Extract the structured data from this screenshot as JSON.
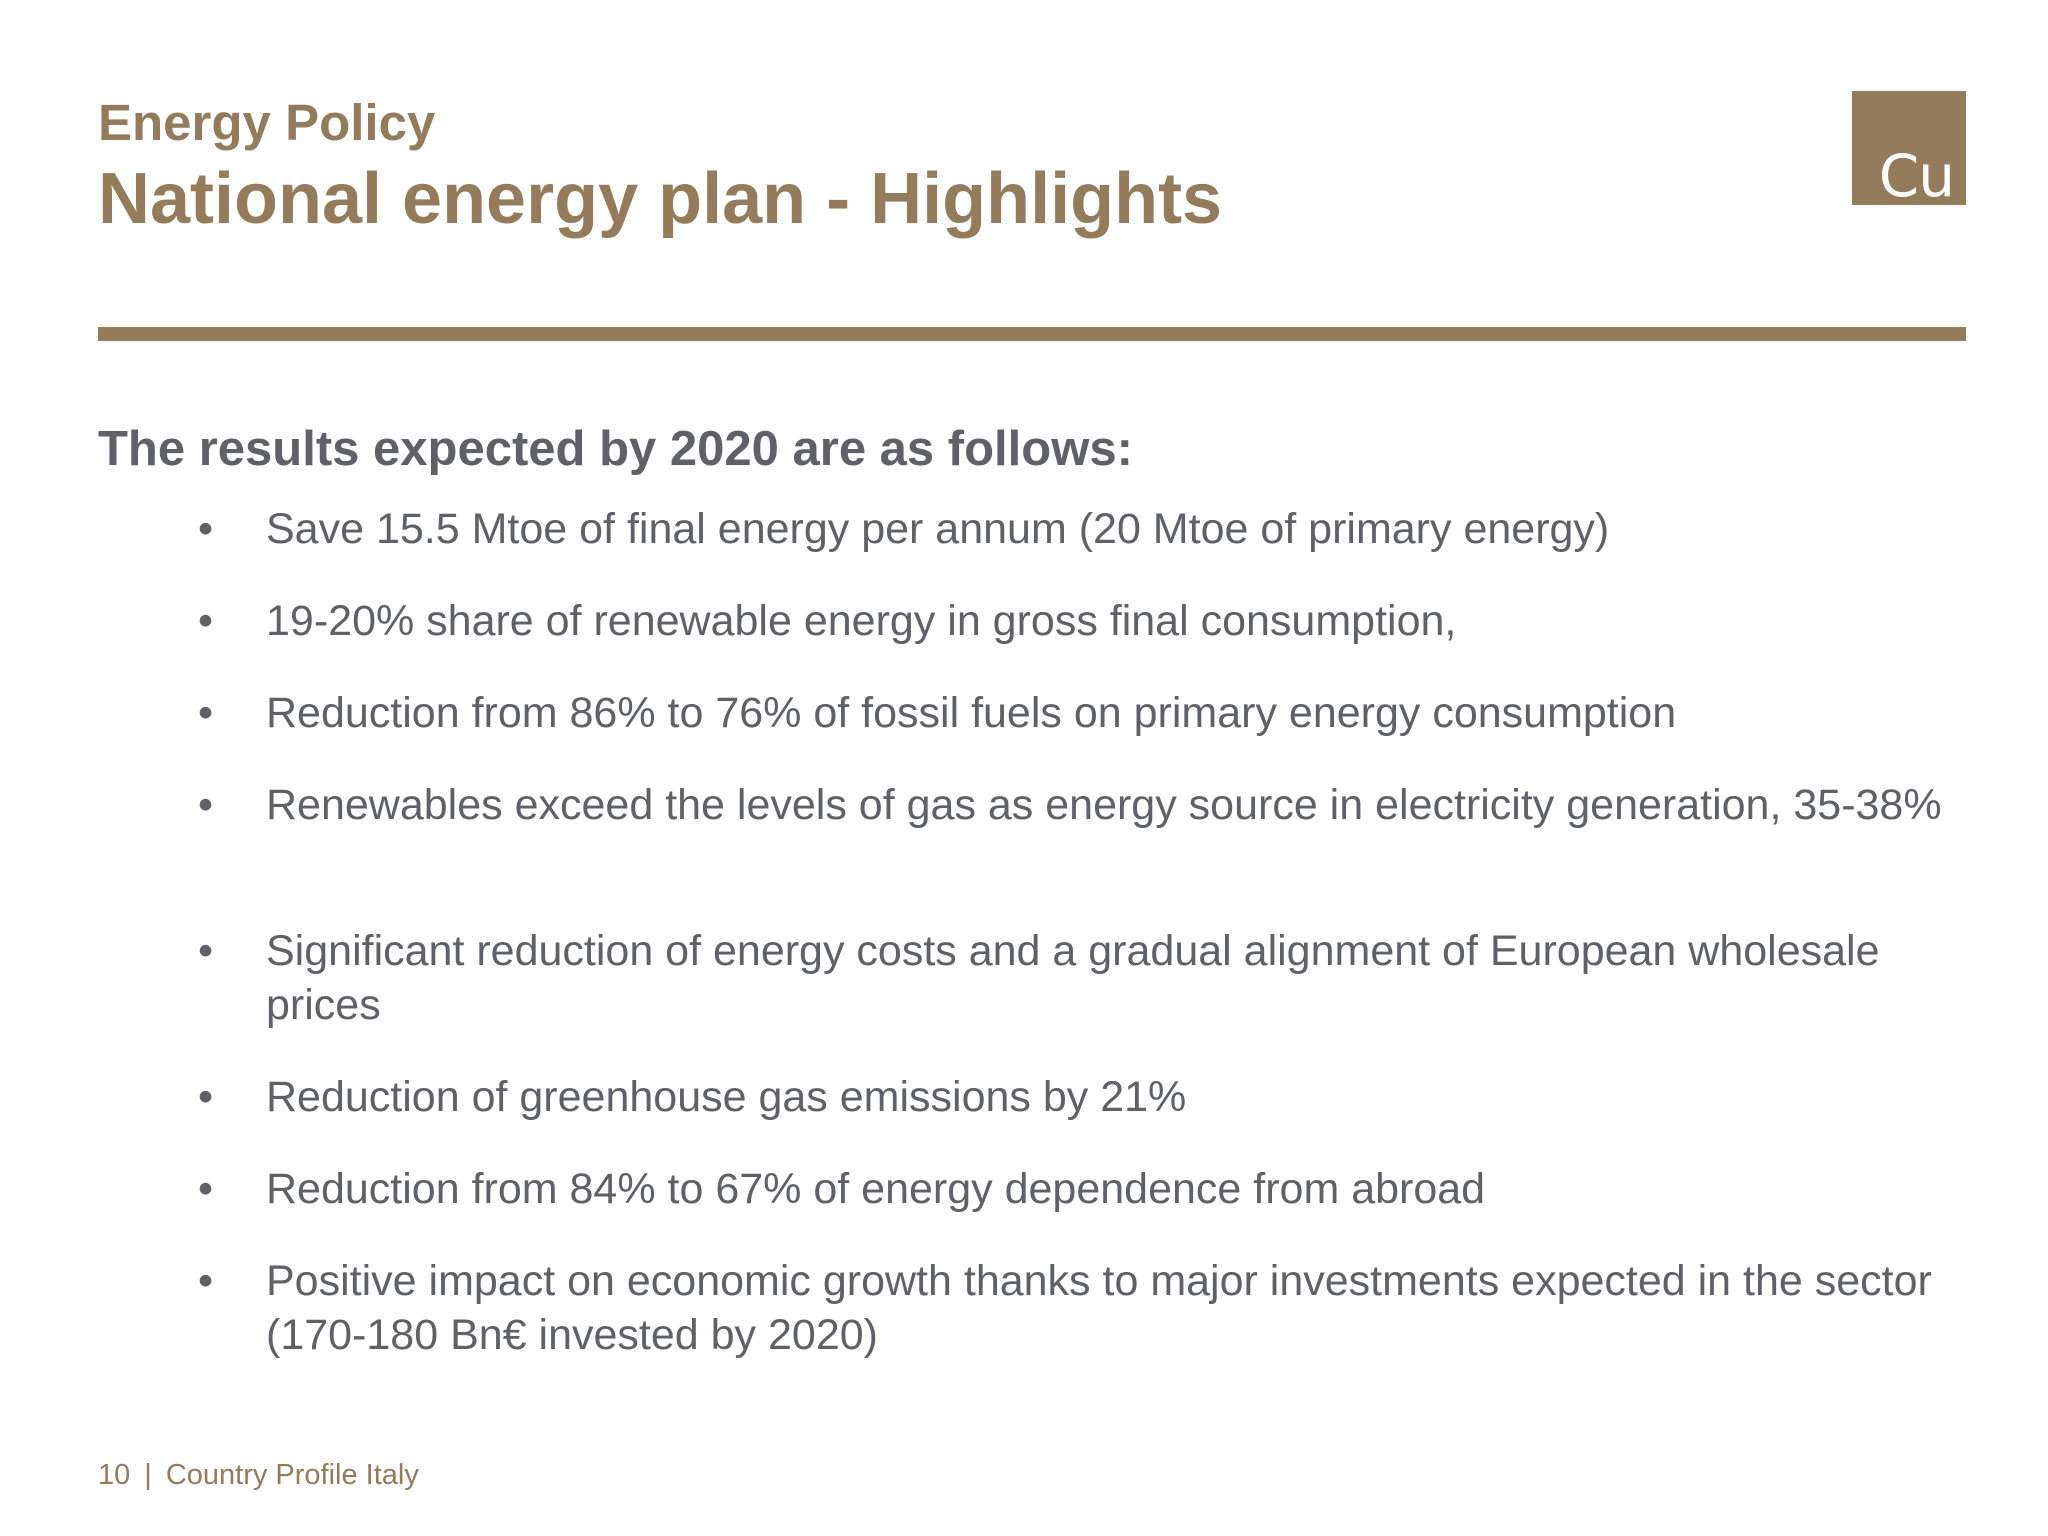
{
  "header": {
    "kicker": "Energy Policy",
    "title": "National energy plan - Highlights",
    "logo_text": "Cu"
  },
  "content": {
    "intro": "The results expected by 2020 are as follows:",
    "bullet_symbol": "•",
    "bullets": [
      "Save 15.5 Mtoe of final energy per annum (20 Mtoe of primary energy)",
      "19-20% share of renewable energy in gross final consumption,",
      "Reduction from 86% to 76% of fossil fuels on primary energy consumption",
      "Renewables exceed the levels of gas as energy source in electricity generation, 35-38%",
      "Significant reduction of energy costs and a gradual alignment of European wholesale prices",
      "Reduction of greenhouse gas emissions by 21%",
      "Reduction from 84% to 67% of energy dependence from abroad",
      "Positive impact on economic growth thanks to major investments expected in the sector (170-180 Bn€ invested by 2020)"
    ]
  },
  "footer": {
    "page_number": "10",
    "separator": "|",
    "label": "Country Profile Italy"
  },
  "colors": {
    "accent": "#937b5c",
    "body_text": "#5f6167",
    "background": "#ffffff",
    "logo_text": "#ffffff"
  }
}
